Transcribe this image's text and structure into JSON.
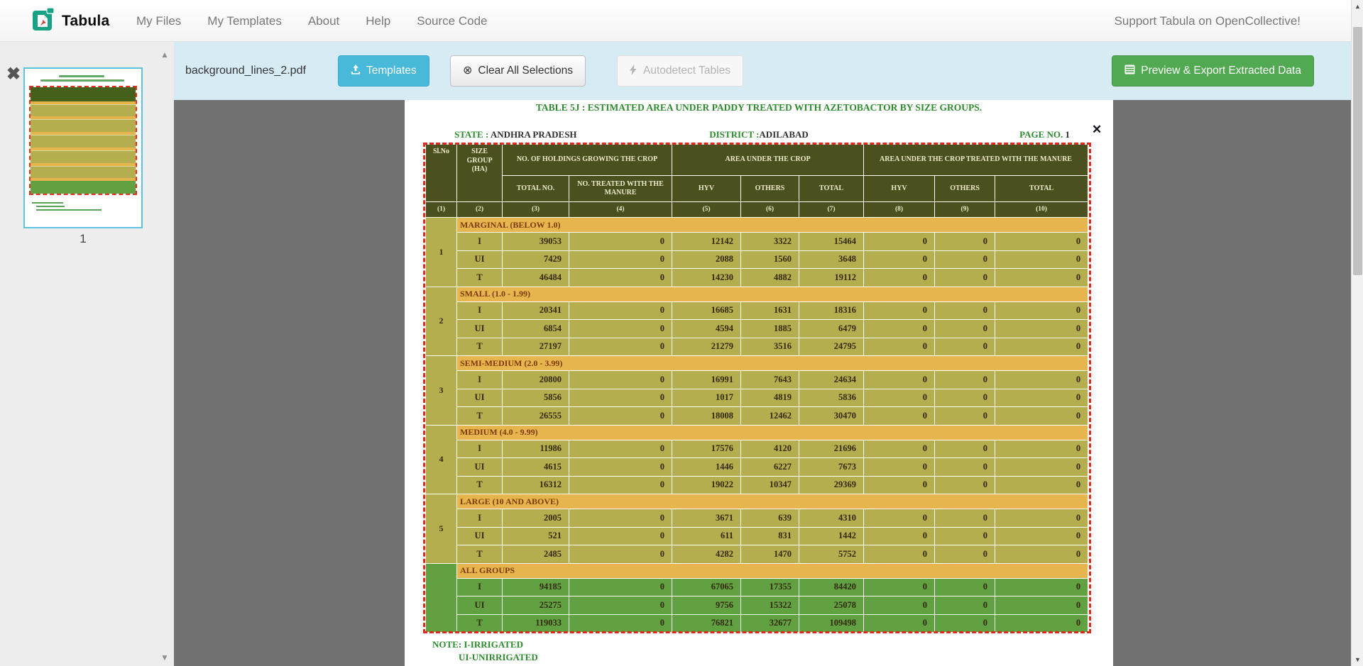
{
  "navbar": {
    "brand": "Tabula",
    "links": [
      {
        "label": "My Files"
      },
      {
        "label": "My Templates"
      },
      {
        "label": "About"
      },
      {
        "label": "Help"
      },
      {
        "label": "Source Code"
      }
    ],
    "support_label": "Support Tabula on OpenCollective!"
  },
  "toolbar": {
    "filename": "background_lines_2.pdf",
    "templates_label": "Templates",
    "clear_label": "Clear All Selections",
    "autodetect_label": "Autodetect Tables",
    "export_label": "Preview & Export Extracted Data"
  },
  "sidebar": {
    "page_number": "1"
  },
  "document": {
    "title": "TABLE 5J : ESTIMATED AREA UNDER PADDY  TREATED WITH AZETOBACTOR BY SIZE GROUPS.",
    "state_label": "STATE :",
    "state_value": "ANDHRA PRADESH",
    "district_label": "DISTRICT :",
    "district_value": "ADILABAD",
    "page_label": "PAGE NO.",
    "page_value": "1",
    "notes": [
      "NOTE: I-IRRIGATED",
      "UI-UNIRRIGATED"
    ],
    "table": {
      "header": {
        "sl_no": "Sl.No",
        "size_group": "SIZE GROUP (HA)",
        "holdings": "NO. OF HOLDINGS GROWING THE CROP",
        "area": "AREA UNDER THE CROP",
        "area_treated": "AREA UNDER THE CROP TREATED WITH THE MANURE",
        "sub": [
          "TOTAL NO.",
          "NO. TREATED WITH THE MANURE",
          "HYV",
          "OTHERS",
          "TOTAL",
          "HYV",
          "OTHERS",
          "TOTAL"
        ],
        "col_numbers": [
          "(1)",
          "(2)",
          "(3)",
          "(4)",
          "(5)",
          "(6)",
          "(7)",
          "(8)",
          "(9)",
          "(10)"
        ]
      },
      "groups": [
        {
          "sl": "1",
          "band": "MARGINAL (BELOW 1.0)",
          "highlight": false,
          "rows": [
            [
              "I",
              "39053",
              "0",
              "12142",
              "3322",
              "15464",
              "0",
              "0",
              "0"
            ],
            [
              "UI",
              "7429",
              "0",
              "2088",
              "1560",
              "3648",
              "0",
              "0",
              "0"
            ],
            [
              "T",
              "46484",
              "0",
              "14230",
              "4882",
              "19112",
              "0",
              "0",
              "0"
            ]
          ]
        },
        {
          "sl": "2",
          "band": "SMALL (1.0 - 1.99)",
          "highlight": false,
          "rows": [
            [
              "I",
              "20341",
              "0",
              "16685",
              "1631",
              "18316",
              "0",
              "0",
              "0"
            ],
            [
              "UI",
              "6854",
              "0",
              "4594",
              "1885",
              "6479",
              "0",
              "0",
              "0"
            ],
            [
              "T",
              "27197",
              "0",
              "21279",
              "3516",
              "24795",
              "0",
              "0",
              "0"
            ]
          ]
        },
        {
          "sl": "3",
          "band": "SEMI-MEDIUM (2.0 - 3.99)",
          "highlight": false,
          "rows": [
            [
              "I",
              "20800",
              "0",
              "16991",
              "7643",
              "24634",
              "0",
              "0",
              "0"
            ],
            [
              "UI",
              "5856",
              "0",
              "1017",
              "4819",
              "5836",
              "0",
              "0",
              "0"
            ],
            [
              "T",
              "26555",
              "0",
              "18008",
              "12462",
              "30470",
              "0",
              "0",
              "0"
            ]
          ]
        },
        {
          "sl": "4",
          "band": "MEDIUM (4.0 - 9.99)",
          "highlight": false,
          "rows": [
            [
              "I",
              "11986",
              "0",
              "17576",
              "4120",
              "21696",
              "0",
              "0",
              "0"
            ],
            [
              "UI",
              "4615",
              "0",
              "1446",
              "6227",
              "7673",
              "0",
              "0",
              "0"
            ],
            [
              "T",
              "16312",
              "0",
              "19022",
              "10347",
              "29369",
              "0",
              "0",
              "0"
            ]
          ]
        },
        {
          "sl": "5",
          "band": "LARGE (10 AND ABOVE)",
          "highlight": false,
          "rows": [
            [
              "I",
              "2005",
              "0",
              "3671",
              "639",
              "4310",
              "0",
              "0",
              "0"
            ],
            [
              "UI",
              "521",
              "0",
              "611",
              "831",
              "1442",
              "0",
              "0",
              "0"
            ],
            [
              "T",
              "2485",
              "0",
              "4282",
              "1470",
              "5752",
              "0",
              "0",
              "0"
            ]
          ]
        },
        {
          "sl": "",
          "band": "ALL GROUPS",
          "highlight": true,
          "rows": [
            [
              "I",
              "94185",
              "0",
              "67065",
              "17355",
              "84420",
              "0",
              "0",
              "0"
            ],
            [
              "UI",
              "25275",
              "0",
              "9756",
              "15322",
              "25078",
              "0",
              "0",
              "0"
            ],
            [
              "T",
              "119033",
              "0",
              "76821",
              "32677",
              "109498",
              "0",
              "0",
              "0"
            ]
          ]
        }
      ]
    }
  },
  "colors": {
    "toolbar_bg": "#d7ebf5",
    "templates_btn": "#48b9d9",
    "export_btn": "#51aa51",
    "selection_border": "#db2b1d",
    "table_header_bg": "#4b511e",
    "table_band_bg": "#e7b54d",
    "table_row_bg": "#b5ae4e",
    "table_total_bg": "#61a142",
    "doc_green": "#2e8b2e",
    "viewer_bg": "#717171"
  }
}
